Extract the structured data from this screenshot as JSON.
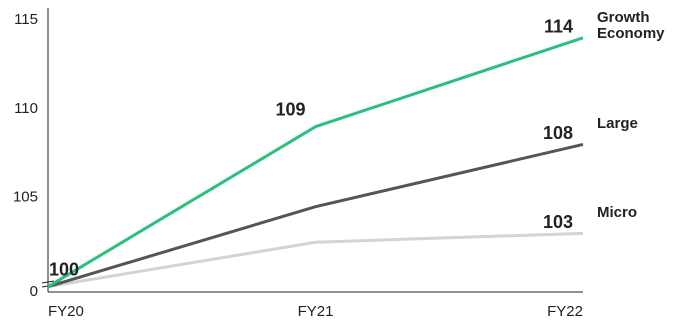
{
  "chart_data": {
    "type": "line",
    "categories": [
      "FY20",
      "FY21",
      "FY22"
    ],
    "series": [
      {
        "name": "Growth Economy",
        "color": "#2dbf7e",
        "values": [
          100,
          109,
          114
        ],
        "value_labels": [
          "100",
          "109",
          "114"
        ]
      },
      {
        "name": "Large",
        "color": "#555555",
        "values": [
          100,
          104.5,
          108
        ],
        "value_labels": [
          null,
          null,
          "108"
        ]
      },
      {
        "name": "Micro",
        "color": "#d4d4d4",
        "values": [
          100,
          102.5,
          103
        ],
        "value_labels": [
          null,
          null,
          "103"
        ]
      }
    ],
    "ylim": [
      99.7,
      115
    ],
    "yticks": [
      105,
      110,
      115
    ],
    "axis_break_label": "0"
  }
}
